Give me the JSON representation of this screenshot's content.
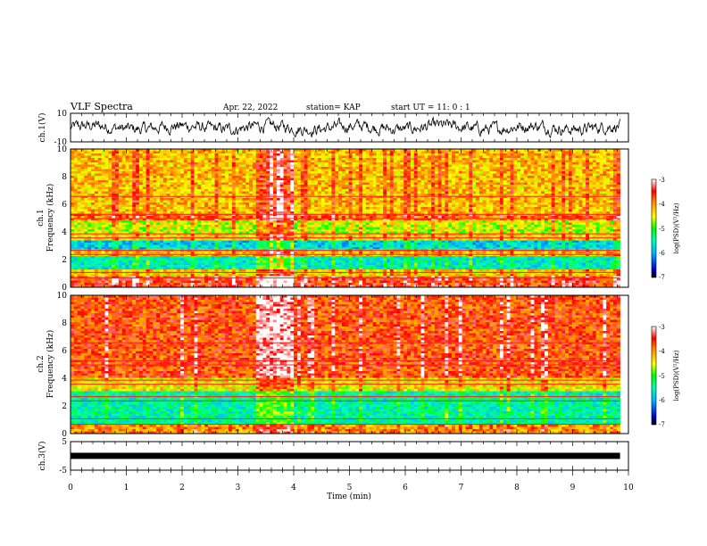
{
  "header": {
    "title": "VLF Spectra",
    "date": "Apr. 22, 2022",
    "station": "station= KAP",
    "start": "start  UT =   11: 0  : 1"
  },
  "chart_data": [
    {
      "type": "line",
      "name": "ch1-waveform",
      "ylabel": "ch.1(V)",
      "ylim": [
        -10,
        10
      ],
      "y_ticks": [
        "10",
        "-10"
      ],
      "xlim": [
        0,
        10
      ],
      "data_end_min": 9.85,
      "description_values": "noisy waveform fluctuating roughly between -5 and 5 V"
    },
    {
      "type": "heatmap",
      "name": "ch1-spectrogram",
      "ylabel": "ch.1\nFrequency  (kHz)",
      "ylabel_lines": [
        "ch.1",
        "Frequency  (kHz)"
      ],
      "ylim": [
        0,
        10
      ],
      "y_ticks": [
        "0",
        "2",
        "4",
        "6",
        "8",
        "10"
      ],
      "xlim": [
        0,
        10
      ],
      "colorbar": {
        "label": "log(PSD)(V²/Hz)",
        "range": [
          -7,
          -3
        ],
        "ticks": [
          "-3",
          "-4",
          "-5",
          "-6",
          "-7"
        ]
      },
      "bands_khz": [
        {
          "from": 0,
          "to": 0.8,
          "level": -3.6
        },
        {
          "from": 0.8,
          "to": 1.3,
          "level": -4.3
        },
        {
          "from": 1.3,
          "to": 2.3,
          "level": -5.6
        },
        {
          "from": 2.3,
          "to": 2.7,
          "level": -4.2
        },
        {
          "from": 2.7,
          "to": 3.4,
          "level": -5.8
        },
        {
          "from": 3.4,
          "to": 3.9,
          "level": -4.4
        },
        {
          "from": 3.9,
          "to": 4.8,
          "level": -4.6
        },
        {
          "from": 4.8,
          "to": 5.4,
          "level": -3.9
        },
        {
          "from": 5.4,
          "to": 10,
          "level": -4.2
        }
      ],
      "burst_min": [
        3.35,
        4.0
      ]
    },
    {
      "type": "heatmap",
      "name": "ch2-spectrogram",
      "ylabel_lines": [
        "ch.2",
        "Frequency  (kHz)"
      ],
      "ylim": [
        0,
        10
      ],
      "y_ticks": [
        "0",
        "2",
        "4",
        "6",
        "8",
        "10"
      ],
      "xlim": [
        0,
        10
      ],
      "colorbar": {
        "label": "log(PSD)(V²/Hz)",
        "range": [
          -7,
          -3
        ],
        "ticks": [
          "-3",
          "-4",
          "-5",
          "-6",
          "-7"
        ]
      },
      "bands_khz": [
        {
          "from": 0,
          "to": 0.6,
          "level": -4.0
        },
        {
          "from": 0.6,
          "to": 3.0,
          "level": -5.5
        },
        {
          "from": 3.0,
          "to": 4.0,
          "level": -4.4
        },
        {
          "from": 4.0,
          "to": 10,
          "level": -3.7
        }
      ],
      "burst_min": [
        3.35,
        4.0
      ]
    },
    {
      "type": "line",
      "name": "ch3-waveform",
      "ylabel": "ch.3(V)",
      "ylim": [
        -5,
        5
      ],
      "y_ticks": [
        "5",
        "-5"
      ],
      "xlim": [
        0,
        10
      ],
      "data_end_min": 9.85,
      "level_v": [
        -0.3,
        0.3
      ]
    }
  ],
  "xaxis": {
    "label": "Time  (min)",
    "ticks": [
      "0",
      "1",
      "2",
      "3",
      "4",
      "5",
      "6",
      "7",
      "8",
      "9",
      "10"
    ]
  }
}
